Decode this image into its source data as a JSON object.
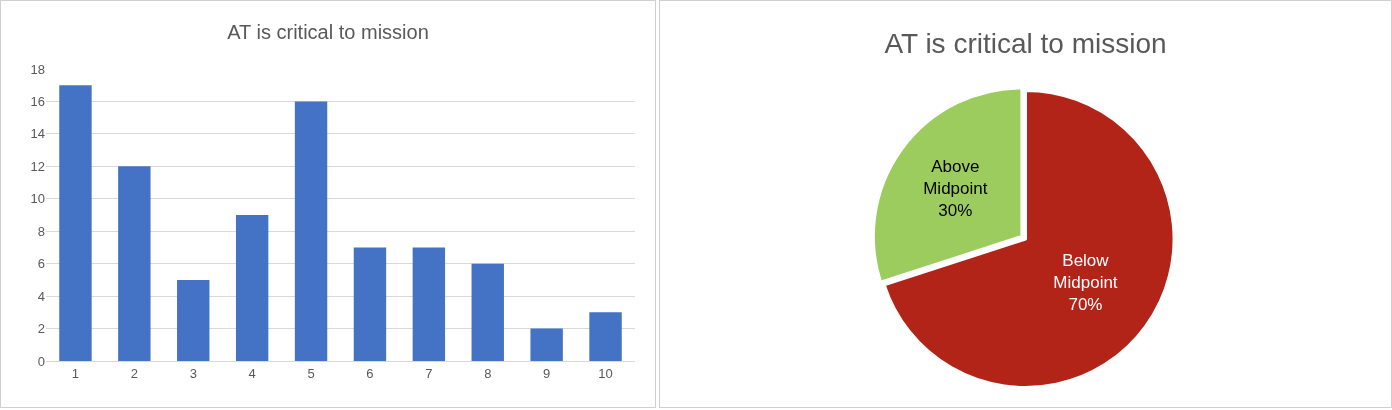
{
  "chart_data": [
    {
      "type": "bar",
      "title": "AT is critical to mission",
      "categories": [
        "1",
        "2",
        "3",
        "4",
        "5",
        "6",
        "7",
        "8",
        "9",
        "10"
      ],
      "values": [
        17,
        12,
        5,
        9,
        16,
        7,
        7,
        6,
        2,
        3
      ],
      "color": "#4472c4",
      "ylim": [
        0,
        18
      ],
      "yticks": [
        0,
        2,
        4,
        6,
        8,
        10,
        12,
        14,
        16,
        18
      ],
      "grid": "y",
      "legend": false
    },
    {
      "type": "pie",
      "title": "AT is critical to mission",
      "categories": [
        "Below Midpoint",
        "Above Midpoint"
      ],
      "values": [
        70,
        30
      ],
      "value_labels": [
        "70%",
        "30%"
      ],
      "colors": [
        "#b22417",
        "#9ccc5e"
      ],
      "legend": false
    }
  ]
}
